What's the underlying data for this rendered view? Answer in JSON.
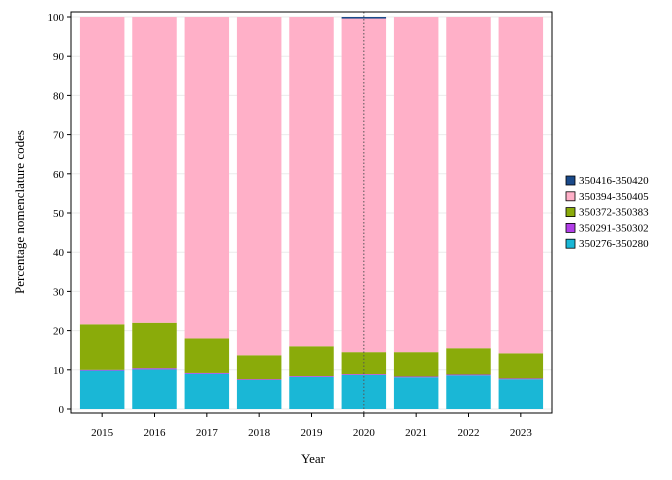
{
  "chart_data": {
    "type": "bar",
    "stacked": true,
    "xlabel": "Year",
    "ylabel": "Percentage nomenclature codes",
    "ylim": [
      0,
      100
    ],
    "yticks": [
      0,
      10,
      20,
      30,
      40,
      50,
      60,
      70,
      80,
      90,
      100
    ],
    "grid": true,
    "legend_position": "right",
    "categories": [
      "2015",
      "2016",
      "2017",
      "2018",
      "2019",
      "2020",
      "2021",
      "2022",
      "2023"
    ],
    "highlight_category": "2020",
    "series": [
      {
        "name": "350276-350280",
        "color": "#1ab7d6",
        "values": [
          9.8,
          10.1,
          9.0,
          7.4,
          8.2,
          8.7,
          8.1,
          8.6,
          7.6
        ]
      },
      {
        "name": "350291-350302",
        "color": "#b23ee8",
        "values": [
          0.2,
          0.3,
          0.2,
          0.2,
          0.2,
          0.2,
          0.2,
          0.2,
          0.2
        ]
      },
      {
        "name": "350372-350383",
        "color": "#8aab0a",
        "values": [
          11.6,
          11.6,
          8.8,
          6.1,
          7.6,
          5.6,
          6.2,
          6.7,
          6.4
        ]
      },
      {
        "name": "350394-350405",
        "color": "#ffb0c8",
        "values": [
          78.4,
          78.0,
          82.0,
          86.3,
          84.0,
          85.1,
          85.5,
          84.5,
          85.8
        ]
      },
      {
        "name": "350416-350420",
        "color": "#1a4a8a",
        "values": [
          0,
          0,
          0,
          0,
          0,
          0.4,
          0,
          0,
          0
        ]
      }
    ]
  }
}
